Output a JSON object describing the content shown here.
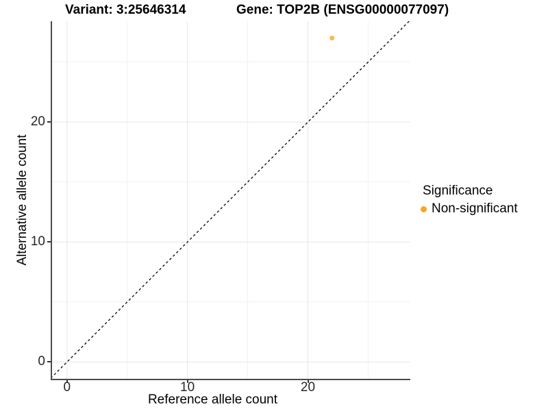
{
  "colors": {
    "axis_line": "#4a4a4a",
    "tick_mark": "#333333",
    "tick_label": "#262626",
    "grid_major": "#e6e6e6",
    "grid_minor": "#f1f1f1",
    "identity_line": "#000000",
    "point_orange": "#FFA41E",
    "background": "#ffffff"
  },
  "chart_data": {
    "type": "scatter",
    "title_left": "Variant: 3:25646314",
    "title_right": "Gene: TOP2B (ENSG00000077097)",
    "xlabel": "Reference allele count",
    "ylabel": "Alternative allele count",
    "xlim": [
      -1.35,
      28.5
    ],
    "ylim": [
      -1.4,
      28.4
    ],
    "x_ticks": [
      "0",
      "10",
      "20"
    ],
    "x_tick_values": [
      0,
      10,
      20
    ],
    "y_ticks": [
      "0",
      "10",
      "20"
    ],
    "y_tick_values": [
      0,
      10,
      20
    ],
    "x_minor_tick_values": [
      5,
      15,
      25
    ],
    "y_minor_tick_values": [
      5,
      15,
      25
    ],
    "grid": "major and minor gridlines, white panel background",
    "identity_line": {
      "equation": "y = x",
      "style": "dashed",
      "color": "#000000"
    },
    "series": [
      {
        "name": "Non-significant",
        "color": "#FFA41E",
        "point_opacity": 0.8,
        "point_radius": 3.5,
        "points": [
          {
            "x": 22,
            "y": 27
          }
        ]
      }
    ],
    "legend": {
      "title": "Significance",
      "position": "right",
      "items": [
        {
          "label": "Non-significant",
          "color": "#FFA41E",
          "marker": "circle"
        }
      ]
    }
  }
}
